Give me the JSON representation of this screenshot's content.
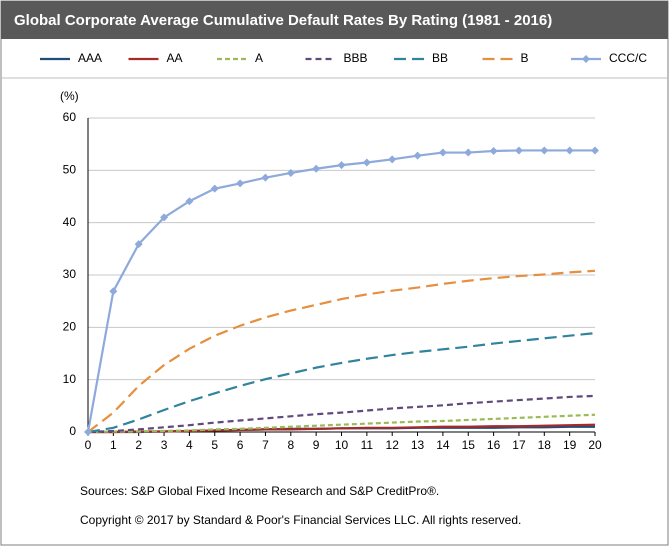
{
  "chart_data": {
    "type": "line",
    "title": "Global Corporate Average Cumulative Default Rates By Rating (1981 - 2016)",
    "y_label": "(%)",
    "x": [
      0,
      1,
      2,
      3,
      4,
      5,
      6,
      7,
      8,
      9,
      10,
      11,
      12,
      13,
      14,
      15,
      16,
      17,
      18,
      19,
      20
    ],
    "xlim": [
      0,
      20
    ],
    "xticks": [
      0,
      1,
      2,
      3,
      4,
      5,
      6,
      7,
      8,
      9,
      10,
      11,
      12,
      13,
      14,
      15,
      16,
      17,
      18,
      19,
      20
    ],
    "ylim": [
      0,
      60
    ],
    "yticks": [
      0,
      10,
      20,
      30,
      40,
      50,
      60
    ],
    "grid": true,
    "legend": "top",
    "series": [
      {
        "name": "AAA",
        "color": "#1f4e79",
        "style": "solid",
        "values": [
          0,
          0,
          0,
          0.1,
          0.2,
          0.3,
          0.4,
          0.5,
          0.6,
          0.6,
          0.7,
          0.7,
          0.7,
          0.8,
          0.8,
          0.8,
          0.8,
          0.9,
          0.9,
          1.0,
          1.0
        ]
      },
      {
        "name": "AA",
        "color": "#a52a2a",
        "style": "solid",
        "values": [
          0,
          0,
          0.1,
          0.1,
          0.2,
          0.3,
          0.4,
          0.5,
          0.5,
          0.6,
          0.7,
          0.8,
          0.8,
          0.9,
          1.0,
          1.0,
          1.1,
          1.1,
          1.2,
          1.3,
          1.4
        ]
      },
      {
        "name": "A",
        "color": "#9bbb59",
        "style": "dotted",
        "values": [
          0,
          0.1,
          0.1,
          0.2,
          0.3,
          0.5,
          0.6,
          0.8,
          1.0,
          1.2,
          1.4,
          1.6,
          1.8,
          2.0,
          2.1,
          2.3,
          2.5,
          2.7,
          2.9,
          3.1,
          3.3
        ]
      },
      {
        "name": "BBB",
        "color": "#604a7b",
        "style": "dashed",
        "values": [
          0,
          0.2,
          0.5,
          0.9,
          1.3,
          1.8,
          2.2,
          2.6,
          3.0,
          3.4,
          3.7,
          4.1,
          4.5,
          4.8,
          5.1,
          5.5,
          5.8,
          6.1,
          6.4,
          6.7,
          6.9
        ]
      },
      {
        "name": "BB",
        "color": "#31849b",
        "style": "longdash",
        "values": [
          0,
          0.8,
          2.4,
          4.2,
          5.9,
          7.4,
          8.8,
          10.1,
          11.2,
          12.3,
          13.2,
          14.0,
          14.7,
          15.3,
          15.8,
          16.3,
          16.9,
          17.4,
          17.9,
          18.4,
          18.9
        ]
      },
      {
        "name": "B",
        "color": "#e58f3f",
        "style": "longdash",
        "values": [
          0,
          3.7,
          8.8,
          12.8,
          15.9,
          18.4,
          20.3,
          21.9,
          23.2,
          24.3,
          25.4,
          26.3,
          27.0,
          27.6,
          28.3,
          28.9,
          29.4,
          29.8,
          30.1,
          30.5,
          30.8
        ]
      },
      {
        "name": "CCC/C",
        "color": "#8ea9db",
        "style": "solid",
        "marker": "diamond",
        "values": [
          0,
          26.9,
          35.9,
          41.0,
          44.1,
          46.5,
          47.5,
          48.6,
          49.5,
          50.3,
          51.0,
          51.5,
          52.1,
          52.8,
          53.4,
          53.4,
          53.7,
          53.8,
          53.8,
          53.8,
          53.8
        ]
      }
    ],
    "notes": [
      "Sources: S&P Global Fixed Income Research and S&P CreditPro®.",
      "Copyright © 2017 by Standard & Poor's Financial Services LLC. All rights reserved."
    ]
  }
}
